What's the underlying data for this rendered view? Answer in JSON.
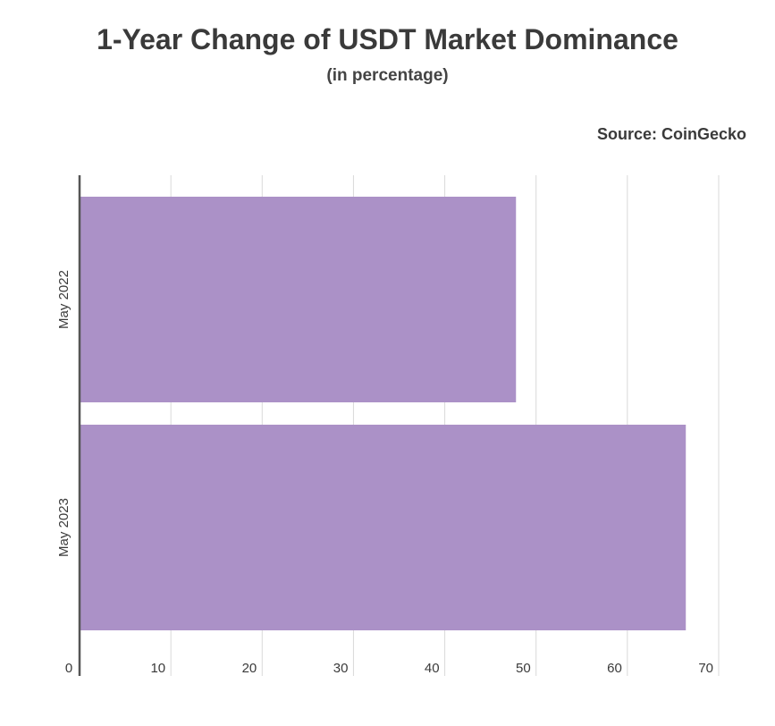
{
  "header": {
    "title": "1-Year Change of USDT Market Dominance",
    "subtitle": "(in percentage)",
    "source": "Source: CoinGecko"
  },
  "chart_data": {
    "type": "bar",
    "orientation": "horizontal",
    "categories": [
      "May 2022",
      "May 2023"
    ],
    "values": [
      47.8,
      66.4
    ],
    "xlim": [
      0,
      70
    ],
    "xticks": [
      0,
      10,
      20,
      30,
      40,
      50,
      60,
      70
    ],
    "grid": true,
    "bar_color": "#ab91c7",
    "axis_color": "#555555",
    "grid_color": "#d9d9d9"
  }
}
